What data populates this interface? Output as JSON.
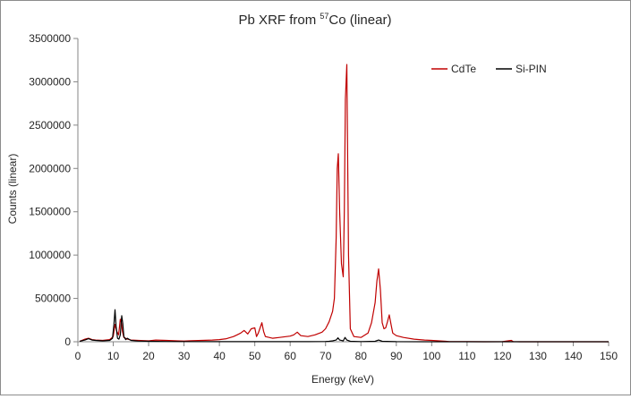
{
  "chart_data": {
    "type": "line",
    "title": "Pb XRF from ⁵⁷Co (linear)",
    "title_parts": {
      "prefix": "Pb XRF from ",
      "sup": "57",
      "suffix": "Co (linear)"
    },
    "xlabel": "Energy (keV)",
    "ylabel": "Counts (linear)",
    "xlim": [
      0,
      150
    ],
    "ylim": [
      0,
      3500000
    ],
    "xticks": [
      0,
      10,
      20,
      30,
      40,
      50,
      60,
      70,
      80,
      90,
      100,
      110,
      120,
      130,
      140,
      150
    ],
    "yticks": [
      0,
      500000,
      1000000,
      1500000,
      2000000,
      2500000,
      3000000,
      3500000
    ],
    "xtick_labels": [
      "0",
      "10",
      "20",
      "30",
      "40",
      "50",
      "60",
      "70",
      "80",
      "90",
      "100",
      "110",
      "120",
      "130",
      "140",
      "150"
    ],
    "ytick_labels": [
      "0",
      "500000",
      "1000000",
      "1500000",
      "2000000",
      "2500000",
      "3000000",
      "3500000"
    ],
    "grid": false,
    "legend_position": "top-right",
    "series": [
      {
        "name": "CdTe",
        "color": "#c00000",
        "x": [
          0.5,
          2,
          3,
          4,
          5,
          7,
          9,
          10,
          10.5,
          11,
          11.5,
          12,
          12.3,
          12.6,
          13,
          14,
          15,
          17,
          20,
          22,
          25,
          28,
          30,
          32,
          35,
          38,
          40,
          42,
          44,
          45,
          46,
          47,
          48,
          49,
          50,
          50.5,
          51,
          51.5,
          52,
          52.5,
          53,
          55,
          57,
          59,
          60,
          61,
          62,
          63,
          65,
          67,
          69,
          70,
          71,
          72,
          72.5,
          73,
          73.3,
          73.6,
          74,
          74.5,
          75,
          75.3,
          75.6,
          76,
          76.5,
          77,
          78,
          80,
          82,
          83,
          84,
          84.5,
          85,
          85.5,
          86,
          86.5,
          87,
          87.5,
          88,
          88.5,
          89,
          90,
          92,
          95,
          98,
          100,
          102,
          104,
          105,
          110,
          115,
          120,
          122.5,
          123,
          125,
          130,
          140,
          150
        ],
        "values": [
          5000,
          30000,
          40000,
          25000,
          20000,
          15000,
          25000,
          60000,
          200000,
          120000,
          80000,
          260000,
          220000,
          120000,
          50000,
          30000,
          20000,
          15000,
          10000,
          20000,
          15000,
          10000,
          8000,
          12000,
          15000,
          20000,
          25000,
          35000,
          60000,
          80000,
          100000,
          130000,
          90000,
          150000,
          160000,
          60000,
          100000,
          160000,
          220000,
          120000,
          60000,
          40000,
          50000,
          60000,
          65000,
          80000,
          110000,
          70000,
          60000,
          80000,
          110000,
          150000,
          230000,
          350000,
          500000,
          1200000,
          2000000,
          2170000,
          1500000,
          900000,
          750000,
          1500000,
          2800000,
          3200000,
          1000000,
          150000,
          60000,
          50000,
          100000,
          220000,
          450000,
          700000,
          840000,
          600000,
          220000,
          150000,
          160000,
          230000,
          310000,
          200000,
          100000,
          70000,
          50000,
          30000,
          20000,
          15000,
          10000,
          5000,
          2000,
          1000,
          500,
          1000,
          15000,
          2000,
          500,
          200,
          100,
          0
        ]
      },
      {
        "name": "Si-PIN",
        "color": "#000000",
        "x": [
          0.5,
          2,
          3,
          4,
          5,
          7,
          9,
          9.8,
          10.2,
          10.5,
          10.8,
          11.2,
          11.6,
          12,
          12.4,
          12.7,
          13,
          13.5,
          14,
          15,
          17,
          20,
          25,
          30,
          40,
          50,
          55,
          60,
          65,
          70,
          71,
          72,
          73,
          73.5,
          74,
          75,
          75.5,
          76,
          77,
          80,
          84,
          85,
          86,
          90,
          100,
          150
        ],
        "values": [
          5000,
          20000,
          35000,
          20000,
          15000,
          10000,
          15000,
          40000,
          200000,
          370000,
          180000,
          40000,
          30000,
          80000,
          300000,
          210000,
          60000,
          25000,
          40000,
          15000,
          8000,
          5000,
          3000,
          2000,
          1500,
          1000,
          1000,
          1000,
          1500,
          3000,
          5000,
          10000,
          20000,
          45000,
          20000,
          10000,
          50000,
          20000,
          5000,
          2000,
          5000,
          20000,
          5000,
          1000,
          500,
          0
        ]
      }
    ]
  }
}
